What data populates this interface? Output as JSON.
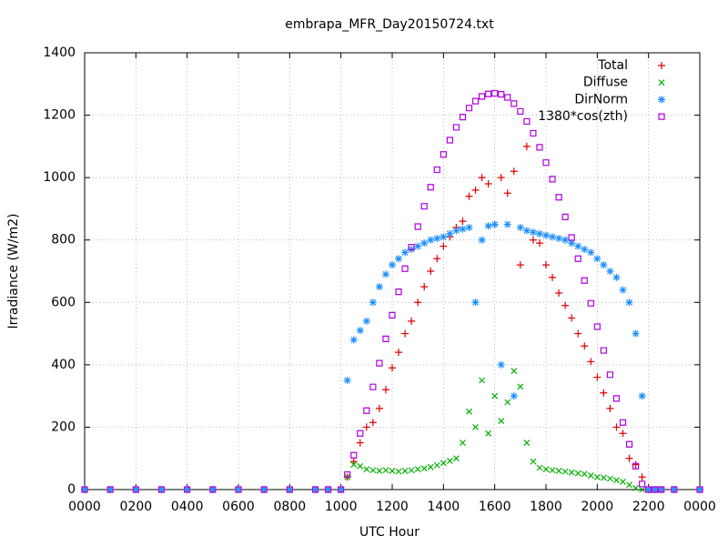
{
  "chart_data": {
    "type": "scatter",
    "title": "embrapa_MFR_Day20150724.txt",
    "x_label": "UTC Hour",
    "y_label": "Irradiance (W/m2)",
    "x": [
      0,
      1,
      2,
      3,
      4,
      5,
      6,
      7,
      8,
      9,
      9.5,
      10,
      10.25,
      10.5,
      10.75,
      11,
      11.25,
      11.5,
      11.75,
      12,
      12.25,
      12.5,
      12.75,
      13,
      13.25,
      13.5,
      13.75,
      14,
      14.25,
      14.5,
      14.75,
      15,
      15.25,
      15.5,
      15.75,
      16,
      16.25,
      16.5,
      16.75,
      17,
      17.25,
      17.5,
      17.75,
      18,
      18.25,
      18.5,
      18.75,
      19,
      19.25,
      19.5,
      19.75,
      20,
      20.25,
      20.5,
      20.75,
      21,
      21.25,
      21.5,
      21.75,
      22,
      22.25,
      22.5,
      23,
      24
    ],
    "series": [
      {
        "name": "Total",
        "color": "#e00000",
        "marker": "plus",
        "values": [
          0,
          0,
          0,
          0,
          0,
          0,
          0,
          0,
          0,
          0,
          0,
          0,
          40,
          90,
          150,
          200,
          215,
          260,
          320,
          390,
          440,
          500,
          540,
          600,
          650,
          700,
          740,
          780,
          810,
          840,
          860,
          940,
          960,
          1000,
          980,
          850,
          1000,
          950,
          1020,
          720,
          1100,
          800,
          790,
          720,
          680,
          630,
          590,
          550,
          500,
          460,
          410,
          360,
          310,
          260,
          200,
          180,
          100,
          80,
          40,
          0,
          0,
          0,
          0,
          0
        ]
      },
      {
        "name": "Diffuse",
        "color": "#00b000",
        "marker": "cross",
        "values": [
          0,
          0,
          0,
          0,
          0,
          0,
          0,
          0,
          0,
          0,
          0,
          0,
          40,
          80,
          75,
          65,
          62,
          60,
          62,
          60,
          58,
          60,
          62,
          65,
          68,
          72,
          78,
          85,
          92,
          100,
          150,
          250,
          200,
          350,
          180,
          300,
          220,
          280,
          380,
          330,
          150,
          90,
          70,
          65,
          62,
          60,
          58,
          55,
          52,
          50,
          45,
          40,
          38,
          35,
          30,
          25,
          15,
          5,
          0,
          0,
          0,
          0,
          0,
          0
        ]
      },
      {
        "name": "DirNorm",
        "color": "#1e90ff",
        "marker": "star",
        "values": [
          0,
          0,
          0,
          0,
          0,
          0,
          0,
          0,
          0,
          0,
          0,
          0,
          350,
          480,
          510,
          540,
          600,
          650,
          690,
          720,
          740,
          760,
          770,
          780,
          790,
          800,
          805,
          810,
          820,
          830,
          835,
          840,
          600,
          800,
          845,
          850,
          400,
          850,
          300,
          840,
          830,
          825,
          820,
          815,
          810,
          805,
          800,
          790,
          780,
          770,
          760,
          740,
          720,
          700,
          680,
          640,
          600,
          500,
          300,
          0,
          0,
          0,
          0,
          0
        ]
      },
      {
        "name": "1380*cos(zth)",
        "color": "#b000e0",
        "marker": "square",
        "values": [
          0,
          0,
          0,
          0,
          0,
          0,
          0,
          0,
          0,
          0,
          0,
          0,
          48,
          110,
          180,
          253,
          329,
          405,
          483,
          559,
          634,
          708,
          777,
          843,
          908,
          969,
          1025,
          1074,
          1120,
          1161,
          1194,
          1223,
          1245,
          1260,
          1268,
          1270,
          1267,
          1257,
          1237,
          1212,
          1180,
          1142,
          1097,
          1048,
          995,
          937,
          874,
          808,
          740,
          670,
          597,
          522,
          446,
          368,
          292,
          215,
          145,
          75,
          18,
          0,
          0,
          0,
          0,
          0
        ]
      }
    ],
    "xlim": [
      0,
      24
    ],
    "xticks": [
      {
        "value": 0,
        "label": "0000"
      },
      {
        "value": 2,
        "label": "0200"
      },
      {
        "value": 4,
        "label": "0400"
      },
      {
        "value": 6,
        "label": "0600"
      },
      {
        "value": 8,
        "label": "0800"
      },
      {
        "value": 10,
        "label": "1000"
      },
      {
        "value": 12,
        "label": "1200"
      },
      {
        "value": 14,
        "label": "1400"
      },
      {
        "value": 16,
        "label": "1600"
      },
      {
        "value": 18,
        "label": "1800"
      },
      {
        "value": 20,
        "label": "2000"
      },
      {
        "value": 22,
        "label": "2200"
      },
      {
        "value": 24,
        "label": "0000"
      }
    ],
    "ylim": [
      0,
      1400
    ],
    "yticks": [
      0,
      200,
      400,
      600,
      800,
      1000,
      1200,
      1400
    ],
    "grid": true,
    "legend": "top right"
  }
}
